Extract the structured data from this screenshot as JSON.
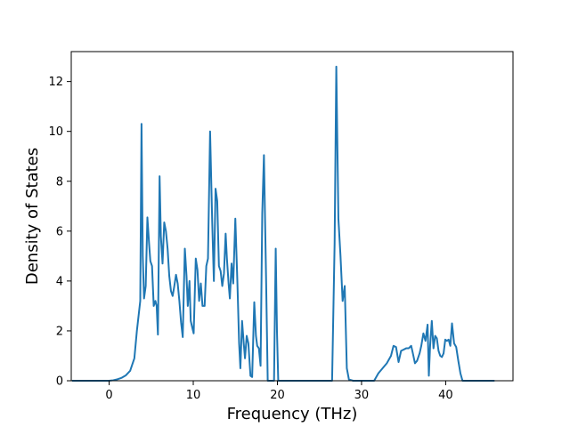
{
  "chart_data": {
    "type": "line",
    "title": "",
    "xlabel": "Frequency (THz)",
    "ylabel": "Density of States",
    "xlim": [
      -4.5,
      48
    ],
    "ylim": [
      0,
      13.2
    ],
    "xticks": [
      0,
      10,
      20,
      30,
      40
    ],
    "yticks": [
      0,
      2,
      4,
      6,
      8,
      10,
      12
    ],
    "grid": false,
    "legend": "none",
    "series": [
      {
        "color": "#1f77b4",
        "points": [
          [
            -4.3,
            0
          ],
          [
            -2,
            0
          ],
          [
            0,
            0
          ],
          [
            0.5,
            0.02
          ],
          [
            1,
            0.06
          ],
          [
            1.5,
            0.12
          ],
          [
            2,
            0.22
          ],
          [
            2.5,
            0.4
          ],
          [
            3,
            0.9
          ],
          [
            3.3,
            2.0
          ],
          [
            3.5,
            2.6
          ],
          [
            3.7,
            3.2
          ],
          [
            3.85,
            10.3
          ],
          [
            4.0,
            5.0
          ],
          [
            4.15,
            3.3
          ],
          [
            4.35,
            3.8
          ],
          [
            4.55,
            6.55
          ],
          [
            4.75,
            5.5
          ],
          [
            4.9,
            4.8
          ],
          [
            5.1,
            4.6
          ],
          [
            5.3,
            3.0
          ],
          [
            5.5,
            3.2
          ],
          [
            5.65,
            3.0
          ],
          [
            5.8,
            1.85
          ],
          [
            6.0,
            8.2
          ],
          [
            6.15,
            5.8
          ],
          [
            6.35,
            4.7
          ],
          [
            6.55,
            6.35
          ],
          [
            6.75,
            6.0
          ],
          [
            6.95,
            5.3
          ],
          [
            7.15,
            4.2
          ],
          [
            7.35,
            3.6
          ],
          [
            7.55,
            3.4
          ],
          [
            7.75,
            3.8
          ],
          [
            7.95,
            4.25
          ],
          [
            8.15,
            3.9
          ],
          [
            8.35,
            3.2
          ],
          [
            8.55,
            2.35
          ],
          [
            8.75,
            1.75
          ],
          [
            9.0,
            5.3
          ],
          [
            9.2,
            4.2
          ],
          [
            9.35,
            3.0
          ],
          [
            9.55,
            4.0
          ],
          [
            9.7,
            2.4
          ],
          [
            9.9,
            2.1
          ],
          [
            10.05,
            1.9
          ],
          [
            10.3,
            4.9
          ],
          [
            10.5,
            4.45
          ],
          [
            10.7,
            3.2
          ],
          [
            10.9,
            3.9
          ],
          [
            11.1,
            3.0
          ],
          [
            11.35,
            3.0
          ],
          [
            11.55,
            4.6
          ],
          [
            11.75,
            4.9
          ],
          [
            12.0,
            10.0
          ],
          [
            12.25,
            6.4
          ],
          [
            12.45,
            4.0
          ],
          [
            12.65,
            7.7
          ],
          [
            12.85,
            7.2
          ],
          [
            13.05,
            4.6
          ],
          [
            13.25,
            4.4
          ],
          [
            13.45,
            3.8
          ],
          [
            13.65,
            4.3
          ],
          [
            13.85,
            5.9
          ],
          [
            14.0,
            4.9
          ],
          [
            14.2,
            3.9
          ],
          [
            14.35,
            3.3
          ],
          [
            14.55,
            4.7
          ],
          [
            14.75,
            3.9
          ],
          [
            15.0,
            6.5
          ],
          [
            15.25,
            3.9
          ],
          [
            15.45,
            1.5
          ],
          [
            15.6,
            0.5
          ],
          [
            15.8,
            2.4
          ],
          [
            16.0,
            1.5
          ],
          [
            16.15,
            0.9
          ],
          [
            16.35,
            1.8
          ],
          [
            16.55,
            1.5
          ],
          [
            16.8,
            0.2
          ],
          [
            17.0,
            0.15
          ],
          [
            17.25,
            3.15
          ],
          [
            17.45,
            1.8
          ],
          [
            17.6,
            1.4
          ],
          [
            17.8,
            1.3
          ],
          [
            18.0,
            0.6
          ],
          [
            18.2,
            6.7
          ],
          [
            18.4,
            9.05
          ],
          [
            18.65,
            4.2
          ],
          [
            18.85,
            0
          ],
          [
            19.3,
            0
          ],
          [
            19.6,
            0
          ],
          [
            19.8,
            5.3
          ],
          [
            19.95,
            2.0
          ],
          [
            20.1,
            0
          ],
          [
            21,
            0
          ],
          [
            23,
            0
          ],
          [
            25,
            0
          ],
          [
            26.0,
            0
          ],
          [
            26.5,
            0
          ],
          [
            26.8,
            5.5
          ],
          [
            27.0,
            12.6
          ],
          [
            27.25,
            6.5
          ],
          [
            27.5,
            5.0
          ],
          [
            27.75,
            3.2
          ],
          [
            28.0,
            3.8
          ],
          [
            28.25,
            0.5
          ],
          [
            28.5,
            0.05
          ],
          [
            29.0,
            0
          ],
          [
            30,
            0
          ],
          [
            31.0,
            0
          ],
          [
            31.5,
            0
          ],
          [
            32.0,
            0.3
          ],
          [
            32.5,
            0.5
          ],
          [
            33.0,
            0.7
          ],
          [
            33.5,
            1.0
          ],
          [
            33.8,
            1.4
          ],
          [
            34.1,
            1.35
          ],
          [
            34.4,
            0.75
          ],
          [
            34.7,
            1.2
          ],
          [
            35.0,
            1.25
          ],
          [
            35.3,
            1.3
          ],
          [
            35.6,
            1.3
          ],
          [
            35.9,
            1.4
          ],
          [
            36.1,
            1.1
          ],
          [
            36.35,
            0.7
          ],
          [
            36.6,
            0.8
          ],
          [
            36.9,
            1.1
          ],
          [
            37.1,
            1.4
          ],
          [
            37.35,
            1.9
          ],
          [
            37.6,
            1.6
          ],
          [
            37.85,
            2.25
          ],
          [
            38.0,
            0.2
          ],
          [
            38.15,
            1.4
          ],
          [
            38.35,
            2.4
          ],
          [
            38.55,
            1.3
          ],
          [
            38.75,
            1.8
          ],
          [
            38.95,
            1.7
          ],
          [
            39.15,
            1.2
          ],
          [
            39.35,
            1.0
          ],
          [
            39.55,
            0.95
          ],
          [
            39.75,
            1.1
          ],
          [
            39.95,
            1.65
          ],
          [
            40.15,
            1.6
          ],
          [
            40.35,
            1.65
          ],
          [
            40.55,
            1.4
          ],
          [
            40.75,
            2.3
          ],
          [
            41.0,
            1.5
          ],
          [
            41.25,
            1.35
          ],
          [
            41.5,
            0.8
          ],
          [
            41.75,
            0.3
          ],
          [
            42.0,
            0
          ],
          [
            44,
            0
          ],
          [
            45.7,
            0
          ]
        ]
      }
    ]
  }
}
